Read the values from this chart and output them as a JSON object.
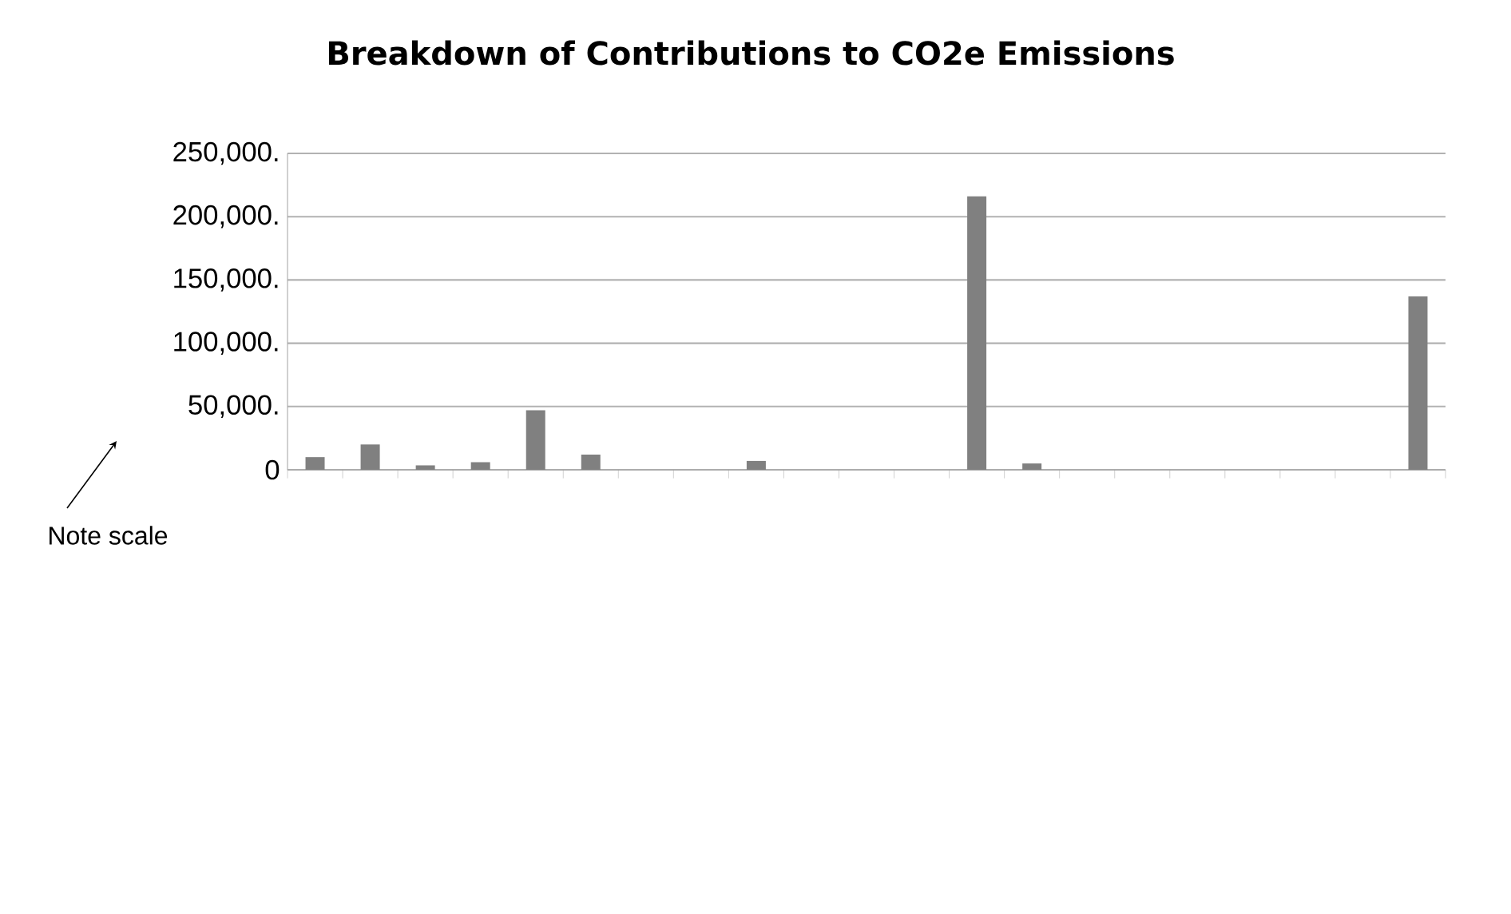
{
  "chart_data": {
    "type": "bar",
    "title": "Breakdown of Contributions to CO2e Emissions",
    "categories": [
      null,
      null,
      null,
      null,
      null,
      null,
      null,
      null,
      null,
      null,
      null,
      null,
      null,
      null,
      null,
      null,
      null,
      null,
      null,
      null,
      null
    ],
    "values": [
      10000,
      20000,
      3500,
      6000,
      47000,
      12000,
      0,
      0,
      7000,
      0,
      0,
      0,
      216000,
      5000,
      0,
      0,
      0,
      0,
      0,
      0,
      137000
    ],
    "color": "#808080",
    "ylim": [
      0,
      250000
    ],
    "yticks": [
      {
        "value": 0,
        "label": "0"
      },
      {
        "value": 50000,
        "label": "50,000."
      },
      {
        "value": 100000,
        "label": "100,000."
      },
      {
        "value": 150000,
        "label": "150,000."
      },
      {
        "value": 200000,
        "label": "200,000."
      },
      {
        "value": 250000,
        "label": "250,000."
      }
    ],
    "grid": "y",
    "annotations": [
      "Note scale"
    ]
  }
}
